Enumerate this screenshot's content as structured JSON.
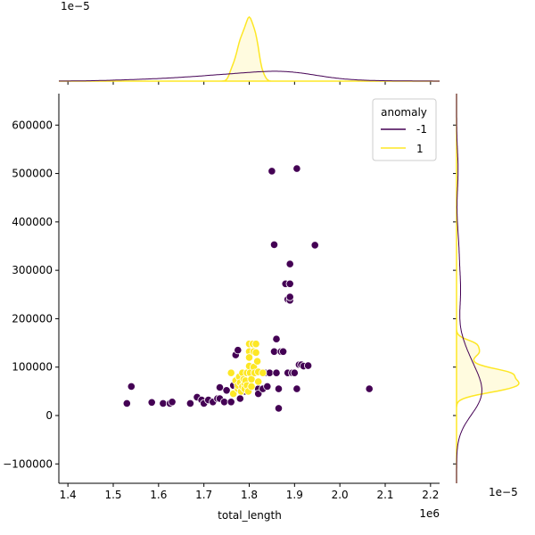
{
  "chart_data": {
    "type": "scatter",
    "xlabel": "total_length",
    "ylabel": "",
    "x_offset_label": "1e6",
    "y_offset_label": "",
    "xlim": [
      1.38,
      2.22
    ],
    "ylim": [
      -140000,
      665000
    ],
    "x_ticks": [
      1.4,
      1.5,
      1.6,
      1.7,
      1.8,
      1.9,
      2.0,
      2.1,
      2.2
    ],
    "x_tick_labels": [
      "1.4",
      "1.5",
      "1.6",
      "1.7",
      "1.8",
      "1.9",
      "2.0",
      "2.1",
      "2.2"
    ],
    "y_ticks": [
      -100000,
      0,
      100000,
      200000,
      300000,
      400000,
      500000,
      600000
    ],
    "y_tick_labels": [
      "−100000",
      "0",
      "100000",
      "200000",
      "300000",
      "400000",
      "500000",
      "600000"
    ],
    "grid": false,
    "legend": {
      "title": "anomaly",
      "placement": "top-right"
    },
    "marginals": {
      "top_scale_label": "1e−5",
      "right_scale_label": "1e−5",
      "top_kde_peak_x": 1.79,
      "right_kde_peak_y": 88000
    },
    "series": [
      {
        "name": "-1",
        "color": "#440154",
        "points": [
          [
            1.53,
            25000
          ],
          [
            1.54,
            60000
          ],
          [
            1.585,
            27000
          ],
          [
            1.61,
            25000
          ],
          [
            1.625,
            25000
          ],
          [
            1.63,
            28000
          ],
          [
            1.67,
            25000
          ],
          [
            1.685,
            38000
          ],
          [
            1.695,
            32000
          ],
          [
            1.7,
            25000
          ],
          [
            1.71,
            32000
          ],
          [
            1.72,
            28000
          ],
          [
            1.73,
            35000
          ],
          [
            1.735,
            35000
          ],
          [
            1.735,
            58000
          ],
          [
            1.745,
            28000
          ],
          [
            1.75,
            52000
          ],
          [
            1.76,
            28000
          ],
          [
            1.765,
            62000
          ],
          [
            1.77,
            125000
          ],
          [
            1.775,
            135000
          ],
          [
            1.78,
            35000
          ],
          [
            1.79,
            50000
          ],
          [
            1.82,
            55000
          ],
          [
            1.82,
            45000
          ],
          [
            1.83,
            55000
          ],
          [
            1.835,
            88000
          ],
          [
            1.84,
            60000
          ],
          [
            1.845,
            88000
          ],
          [
            1.85,
            505000
          ],
          [
            1.855,
            353000
          ],
          [
            1.855,
            132000
          ],
          [
            1.86,
            158000
          ],
          [
            1.86,
            88000
          ],
          [
            1.865,
            15000
          ],
          [
            1.865,
            55000
          ],
          [
            1.87,
            132000
          ],
          [
            1.875,
            132000
          ],
          [
            1.88,
            272000
          ],
          [
            1.885,
            240000
          ],
          [
            1.885,
            88000
          ],
          [
            1.89,
            238000
          ],
          [
            1.89,
            245000
          ],
          [
            1.89,
            272000
          ],
          [
            1.89,
            313000
          ],
          [
            1.895,
            88000
          ],
          [
            1.9,
            88000
          ],
          [
            1.905,
            510000
          ],
          [
            1.905,
            55000
          ],
          [
            1.91,
            105000
          ],
          [
            1.915,
            105000
          ],
          [
            1.92,
            102000
          ],
          [
            1.93,
            103000
          ],
          [
            1.945,
            352000
          ],
          [
            2.065,
            55000
          ]
        ]
      },
      {
        "name": "1",
        "color": "#fde725",
        "points": [
          [
            1.76,
            88000
          ],
          [
            1.765,
            45000
          ],
          [
            1.77,
            72000
          ],
          [
            1.775,
            55000
          ],
          [
            1.775,
            62000
          ],
          [
            1.778,
            80000
          ],
          [
            1.78,
            68000
          ],
          [
            1.782,
            50000
          ],
          [
            1.785,
            88000
          ],
          [
            1.785,
            60000
          ],
          [
            1.788,
            75000
          ],
          [
            1.79,
            65000
          ],
          [
            1.79,
            55000
          ],
          [
            1.792,
            72000
          ],
          [
            1.795,
            88000
          ],
          [
            1.795,
            62000
          ],
          [
            1.798,
            50000
          ],
          [
            1.8,
            148000
          ],
          [
            1.8,
            132000
          ],
          [
            1.8,
            120000
          ],
          [
            1.8,
            102000
          ],
          [
            1.802,
            88000
          ],
          [
            1.805,
            75000
          ],
          [
            1.805,
            60000
          ],
          [
            1.808,
            148000
          ],
          [
            1.81,
            132000
          ],
          [
            1.81,
            100000
          ],
          [
            1.812,
            88000
          ],
          [
            1.815,
            148000
          ],
          [
            1.815,
            130000
          ],
          [
            1.818,
            112000
          ],
          [
            1.82,
            90000
          ],
          [
            1.82,
            70000
          ],
          [
            1.83,
            88000
          ]
        ]
      }
    ]
  }
}
